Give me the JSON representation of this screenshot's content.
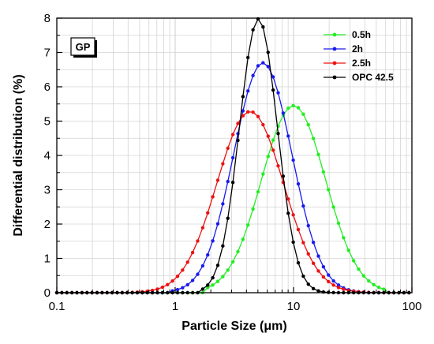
{
  "chart_data": {
    "type": "line",
    "title": "",
    "xlabel": "Particle Size (μm)",
    "ylabel": "Differential distribution (%)",
    "xscale": "log",
    "xlim": [
      0.1,
      100
    ],
    "ylim": [
      0,
      8
    ],
    "x_ticks": [
      "0.1",
      "1",
      "10",
      "100"
    ],
    "y_ticks": [
      "0",
      "1",
      "2",
      "3",
      "4",
      "5",
      "6",
      "7",
      "8"
    ],
    "grid": true,
    "legend_position": "top-right",
    "badge": "GP",
    "series": [
      {
        "name": "0.5h",
        "color": "#22ee22",
        "peak_x": 10.0,
        "peak_y": 5.45,
        "sigma_log10": 0.27,
        "x_min": 1.85,
        "x_max": 60
      },
      {
        "name": "2h",
        "color": "#1a1aee",
        "peak_x": 5.5,
        "peak_y": 6.7,
        "sigma_log10": 0.245,
        "x_min": 0.9,
        "x_max": 40
      },
      {
        "name": "2.5h",
        "color": "#ee1111",
        "peak_x": 4.3,
        "peak_y": 5.28,
        "sigma_log10": 0.28,
        "x_min": 0.4,
        "x_max": 45
      },
      {
        "name": "OPC 42.5",
        "color": "#000000",
        "peak_x": 5.05,
        "peak_y": 7.98,
        "sigma_log10": 0.16,
        "x_min": 1.6,
        "x_max": 22
      }
    ]
  }
}
